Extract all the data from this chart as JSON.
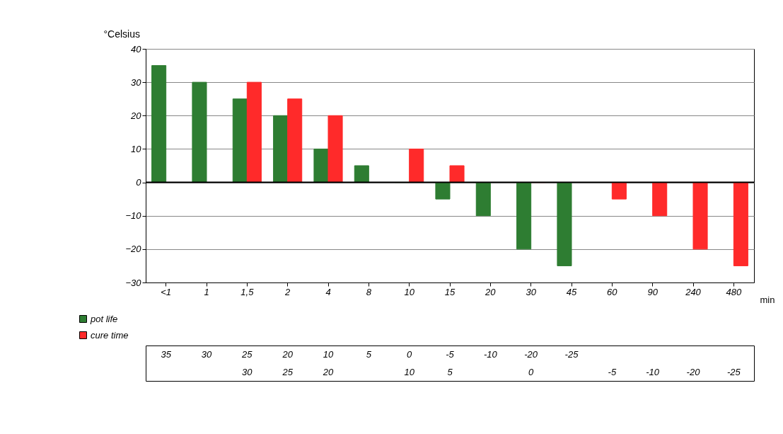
{
  "chart_data": {
    "type": "bar",
    "ylabel": "°Celsius",
    "xlabel": "min",
    "categories": [
      "<1",
      "1",
      "1,5",
      "2",
      "4",
      "8",
      "10",
      "15",
      "20",
      "30",
      "45",
      "60",
      "90",
      "240",
      "480"
    ],
    "series": [
      {
        "name": "pot life",
        "color": "#2e7d32",
        "values": [
          35,
          30,
          25,
          20,
          10,
          5,
          0,
          -5,
          -10,
          -20,
          -25,
          null,
          null,
          null,
          null
        ]
      },
      {
        "name": "cure time",
        "color": "#ff2a2a",
        "values": [
          null,
          null,
          30,
          25,
          20,
          null,
          10,
          5,
          null,
          0,
          null,
          -5,
          -10,
          -20,
          -25
        ]
      }
    ],
    "ylim": [
      -30,
      40
    ],
    "yticks": [
      -30,
      -20,
      -10,
      0,
      10,
      20,
      30,
      40
    ],
    "grid": "y",
    "legend": "bottom left",
    "data_labels": true
  }
}
